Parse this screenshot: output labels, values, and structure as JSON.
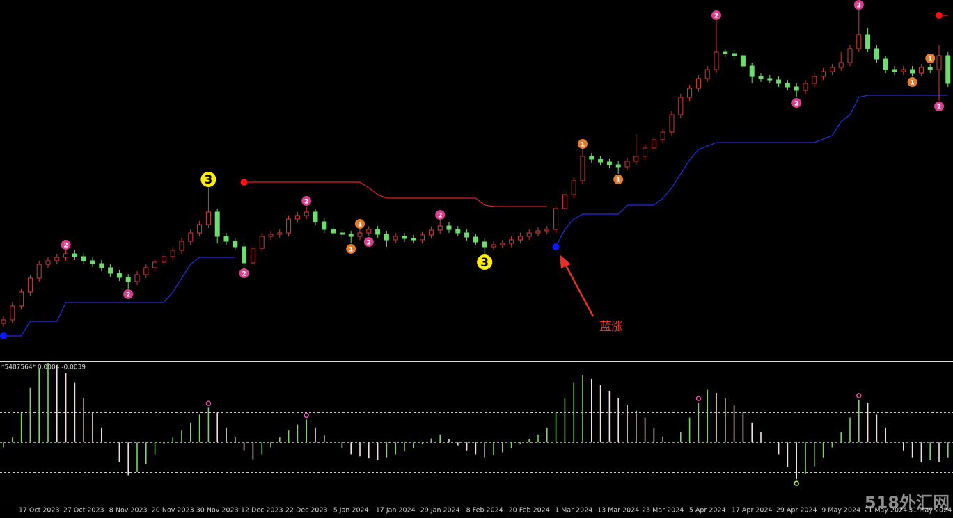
{
  "chart_data": {
    "type": "candlestick",
    "categories": [
      null,
      null,
      null,
      null,
      "17 Oct 2023",
      null,
      null,
      null,
      null,
      "27 Oct 2023",
      null,
      null,
      null,
      null,
      "8 Nov 2023",
      null,
      null,
      null,
      null,
      "20 Nov 2023",
      null,
      null,
      null,
      null,
      "30 Nov 2023",
      null,
      null,
      null,
      null,
      "12 Dec 2023",
      null,
      null,
      null,
      null,
      "22 Dec 2023",
      null,
      null,
      null,
      null,
      "5 Jan 2024",
      null,
      null,
      null,
      null,
      "17 Jan 2024",
      null,
      null,
      null,
      null,
      "29 Jan 2024",
      null,
      null,
      null,
      null,
      "8 Feb 2024",
      null,
      null,
      null,
      null,
      "20 Feb 2024",
      null,
      null,
      null,
      null,
      "1 Mar 2024",
      null,
      null,
      null,
      null,
      "13 Mar 2024",
      null,
      null,
      null,
      null,
      "25 Mar 2024",
      null,
      null,
      null,
      null,
      "5 Apr 2024",
      null,
      null,
      null,
      null,
      "17 Apr 2024",
      null,
      null,
      null,
      null,
      "29 Apr 2024",
      null,
      null,
      null,
      null,
      "9 May 2024",
      null,
      null,
      null,
      null,
      "21 May 2024",
      null,
      null,
      null,
      null,
      "31 May 2024",
      null,
      null
    ],
    "open": [
      50,
      55,
      75,
      95,
      115,
      135,
      140,
      145,
      150,
      146,
      140,
      136,
      130,
      122,
      116,
      110,
      120,
      130,
      138,
      146,
      155,
      168,
      180,
      192,
      210,
      175,
      168,
      160,
      137,
      158,
      175,
      178,
      180,
      200,
      205,
      210,
      196,
      185,
      180,
      178,
      175,
      180,
      185,
      178,
      170,
      175,
      172,
      170,
      177,
      184,
      190,
      185,
      180,
      174,
      167,
      160,
      163,
      165,
      170,
      175,
      180,
      183,
      185,
      215,
      235,
      255,
      290,
      286,
      282,
      278,
      275,
      283,
      290,
      302,
      314,
      325,
      350,
      375,
      388,
      402,
      415,
      440,
      438,
      435,
      420,
      405,
      402,
      400,
      395,
      390,
      385,
      395,
      405,
      412,
      418,
      425,
      445,
      465,
      445,
      430,
      415,
      412,
      415,
      410,
      418,
      415,
      435
    ],
    "high": [
      60,
      80,
      100,
      120,
      140,
      145,
      150,
      155,
      155,
      151,
      145,
      141,
      135,
      127,
      121,
      125,
      135,
      143,
      151,
      160,
      173,
      185,
      197,
      245,
      215,
      180,
      173,
      165,
      163,
      180,
      183,
      185,
      205,
      210,
      218,
      215,
      201,
      190,
      185,
      183,
      185,
      190,
      190,
      183,
      180,
      180,
      177,
      182,
      189,
      198,
      195,
      190,
      185,
      179,
      172,
      168,
      170,
      175,
      180,
      185,
      188,
      190,
      220,
      240,
      260,
      300,
      295,
      291,
      287,
      283,
      288,
      322,
      307,
      319,
      330,
      355,
      380,
      393,
      407,
      420,
      485,
      445,
      443,
      440,
      425,
      410,
      407,
      405,
      400,
      395,
      400,
      410,
      417,
      423,
      440,
      450,
      500,
      475,
      450,
      435,
      420,
      420,
      420,
      423,
      423,
      450,
      440
    ],
    "low": [
      45,
      50,
      70,
      90,
      110,
      130,
      135,
      140,
      141,
      135,
      131,
      125,
      117,
      111,
      100,
      105,
      115,
      125,
      133,
      141,
      150,
      163,
      175,
      187,
      165,
      163,
      155,
      130,
      132,
      153,
      170,
      173,
      175,
      195,
      200,
      191,
      180,
      175,
      173,
      165,
      170,
      175,
      173,
      160,
      165,
      167,
      165,
      165,
      172,
      179,
      180,
      175,
      169,
      162,
      150,
      155,
      158,
      160,
      165,
      170,
      175,
      178,
      180,
      210,
      230,
      250,
      281,
      277,
      273,
      265,
      270,
      278,
      285,
      297,
      309,
      320,
      345,
      370,
      383,
      397,
      410,
      433,
      430,
      415,
      395,
      397,
      395,
      390,
      385,
      375,
      380,
      390,
      400,
      407,
      413,
      420,
      440,
      440,
      425,
      410,
      407,
      407,
      405,
      405,
      410,
      370,
      390
    ],
    "close": [
      55,
      75,
      95,
      115,
      135,
      140,
      145,
      150,
      146,
      140,
      136,
      130,
      122,
      116,
      110,
      120,
      130,
      138,
      146,
      155,
      168,
      180,
      192,
      210,
      175,
      168,
      160,
      137,
      158,
      175,
      178,
      180,
      200,
      205,
      210,
      196,
      185,
      180,
      178,
      175,
      180,
      185,
      178,
      170,
      175,
      172,
      170,
      177,
      184,
      190,
      185,
      180,
      174,
      167,
      160,
      163,
      165,
      170,
      175,
      180,
      183,
      185,
      215,
      235,
      255,
      290,
      286,
      282,
      278,
      275,
      283,
      290,
      302,
      314,
      325,
      350,
      375,
      388,
      402,
      415,
      440,
      438,
      435,
      420,
      405,
      402,
      400,
      395,
      390,
      385,
      395,
      405,
      412,
      418,
      425,
      445,
      465,
      445,
      430,
      415,
      412,
      415,
      410,
      418,
      415,
      435,
      395
    ],
    "up_color": "#d83a3a",
    "down_color": "#6fdc6f",
    "ylim": [
      0,
      515
    ],
    "stop_lines": [
      {
        "color": "#1c2fd8",
        "values": [
          32,
          32,
          32,
          53,
          53,
          53,
          53,
          80,
          80,
          80,
          80,
          80,
          80,
          80,
          80,
          80,
          80,
          80,
          80,
          95,
          115,
          135,
          145,
          145,
          145,
          145,
          145,
          null,
          null,
          null,
          null,
          null,
          null,
          null,
          null,
          null,
          null,
          null,
          null,
          null,
          null,
          null,
          null,
          null,
          null,
          null,
          null,
          null,
          null,
          null,
          null,
          null,
          null,
          null,
          null,
          null,
          null,
          null,
          null,
          null,
          null,
          null,
          160,
          185,
          200,
          207,
          207,
          207,
          207,
          207,
          220,
          220,
          220,
          220,
          230,
          245,
          265,
          285,
          300,
          305,
          310,
          310,
          310,
          310,
          310,
          310,
          310,
          310,
          310,
          310,
          310,
          310,
          315,
          320,
          340,
          350,
          375,
          378,
          378,
          378,
          378,
          378,
          378,
          378,
          378,
          378,
          378
        ]
      },
      {
        "color": "#e02020",
        "values": [
          null,
          null,
          null,
          null,
          null,
          null,
          null,
          null,
          null,
          null,
          null,
          null,
          null,
          null,
          null,
          null,
          null,
          null,
          null,
          null,
          null,
          null,
          null,
          null,
          null,
          null,
          null,
          253,
          253,
          253,
          253,
          253,
          253,
          253,
          253,
          253,
          253,
          253,
          253,
          253,
          253,
          245,
          235,
          230,
          230,
          230,
          230,
          230,
          230,
          230,
          230,
          230,
          230,
          230,
          220,
          218,
          218,
          218,
          218,
          218,
          218,
          218,
          null,
          null,
          null,
          null,
          null,
          null,
          null,
          null,
          null,
          null,
          null,
          null,
          null,
          null,
          null,
          null,
          null,
          null,
          null,
          null,
          null,
          null,
          null,
          null,
          null,
          null,
          null,
          null,
          null,
          null,
          null,
          null,
          null,
          null,
          null,
          null,
          null,
          null,
          null,
          null,
          null,
          null,
          null,
          493,
          493
        ]
      }
    ],
    "signals": [
      {
        "index": 7,
        "label": "2",
        "color": "#d6408e",
        "position": "above"
      },
      {
        "index": 14,
        "label": "2",
        "color": "#d6408e",
        "position": "below"
      },
      {
        "index": 23,
        "label": "3",
        "color": "#ffee00",
        "position": "above"
      },
      {
        "index": 27,
        "label": "2",
        "color": "#d6408e",
        "position": "below"
      },
      {
        "index": 34,
        "label": "2",
        "color": "#d6408e",
        "position": "above"
      },
      {
        "index": 39,
        "label": "1",
        "color": "#e07b30",
        "position": "below"
      },
      {
        "index": 40,
        "label": "1",
        "color": "#e07b30",
        "position": "above"
      },
      {
        "index": 41,
        "label": "2",
        "color": "#d6408e",
        "position": "below"
      },
      {
        "index": 49,
        "label": "2",
        "color": "#d6408e",
        "position": "above"
      },
      {
        "index": 54,
        "label": "3",
        "color": "#ffee00",
        "position": "below"
      },
      {
        "index": 65,
        "label": "1",
        "color": "#e07b30",
        "position": "above"
      },
      {
        "index": 69,
        "label": "1",
        "color": "#e07b30",
        "position": "below"
      },
      {
        "index": 80,
        "label": "2",
        "color": "#d6408e",
        "position": "above"
      },
      {
        "index": 89,
        "label": "2",
        "color": "#d6408e",
        "position": "below"
      },
      {
        "index": 96,
        "label": "2",
        "color": "#d6408e",
        "position": "above"
      },
      {
        "index": 102,
        "label": "1",
        "color": "#e07b30",
        "position": "below"
      },
      {
        "index": 104,
        "label": "1",
        "color": "#e07b30",
        "position": "above"
      },
      {
        "index": 105,
        "label": "2",
        "color": "#d6408e",
        "position": "below"
      }
    ],
    "annotation": "蓝涨",
    "watermark": "518外汇网",
    "indicator": {
      "label": "*5487564* 0.0004 -0.0039",
      "values": [
        -0.0005,
        0.0005,
        0.003,
        0.0055,
        0.0075,
        0.008,
        0.0078,
        0.007,
        0.006,
        0.0045,
        0.003,
        0.0015,
        0,
        -0.002,
        -0.0033,
        -0.003,
        -0.0022,
        -0.0012,
        -0.0002,
        0.0005,
        0.0012,
        0.002,
        0.0028,
        0.0035,
        0.003,
        0.0015,
        0.0005,
        -0.0008,
        -0.0017,
        -0.0012,
        -0.0005,
        0.0005,
        0.0012,
        0.0018,
        0.0023,
        0.0015,
        0.0007,
        0,
        -0.0006,
        -0.0012,
        -0.0014,
        -0.0016,
        -0.0018,
        -0.0015,
        -0.0012,
        -0.0009,
        -0.0006,
        -0.0002,
        0.0004,
        0.0008,
        0.0003,
        -0.0003,
        -0.0008,
        -0.0012,
        -0.0015,
        -0.0013,
        -0.001,
        -0.0006,
        -0.0002,
        0.0003,
        0.0008,
        0.0015,
        0.003,
        0.0045,
        0.006,
        0.0068,
        0.0064,
        0.0058,
        0.0052,
        0.0045,
        0.0038,
        0.0032,
        0.0025,
        0.0015,
        0.0006,
        0,
        0.001,
        0.0025,
        0.004,
        0.0053,
        0.005,
        0.0045,
        0.0038,
        0.003,
        0.002,
        0.001,
        0,
        -0.0012,
        -0.0025,
        -0.0037,
        -0.0032,
        -0.0024,
        -0.0015,
        -0.0005,
        0.001,
        0.0025,
        0.0043,
        0.004,
        0.0028,
        0.0015,
        0,
        -0.0008,
        -0.0015,
        -0.002,
        -0.0018,
        -0.002,
        -0.0015
      ],
      "up_color": "#7fd36a",
      "down_color": "#f2dede",
      "ylim": [
        -0.006,
        0.008
      ],
      "levels": [
        0.003,
        0,
        -0.003
      ],
      "markers": [
        {
          "index": 23,
          "color": "#e050b0"
        },
        {
          "index": 34,
          "color": "#e050b0"
        },
        {
          "index": 78,
          "color": "#e050b0"
        },
        {
          "index": 89,
          "color": "#c8e050"
        },
        {
          "index": 96,
          "color": "#e050b0"
        }
      ]
    }
  }
}
